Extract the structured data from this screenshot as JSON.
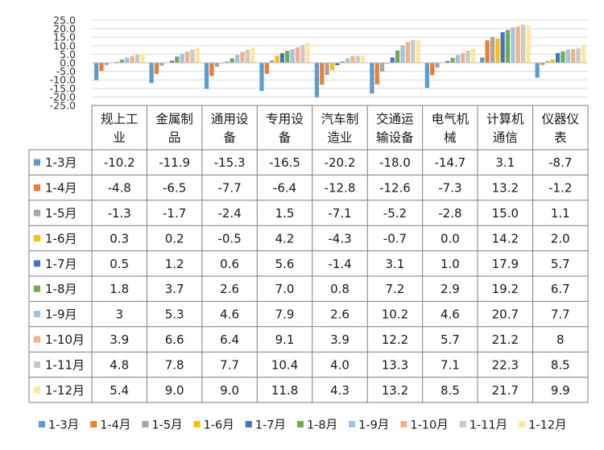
{
  "chart_data": {
    "type": "bar",
    "categories": [
      "规上工业",
      "金属制品",
      "通用设备",
      "专用设备",
      "汽车制造业",
      "交通运输设备",
      "电气机械",
      "计算机通信",
      "仪器仪表"
    ],
    "category_lines": [
      [
        "规上工",
        "业"
      ],
      [
        "金属制",
        "品"
      ],
      [
        "通用设",
        "备"
      ],
      [
        "专用设",
        "备"
      ],
      [
        "汽车制",
        "造业"
      ],
      [
        "交通运",
        "输设备"
      ],
      [
        "电气机",
        "械"
      ],
      [
        "计算机",
        "通信"
      ],
      [
        "仪器仪",
        "表"
      ]
    ],
    "ylim": [
      -25,
      25
    ],
    "yticks": [
      "25.0",
      "20.0",
      "15.0",
      "10.0",
      "5.0",
      "0.0",
      "-5.0",
      "-10.0",
      "-15.0",
      "-20.0",
      "-25.0"
    ],
    "grid": true,
    "legend_position": "bottom",
    "series": [
      {
        "name": "1-3月",
        "color": "#5B9BD5",
        "values": [
          -10.2,
          -11.9,
          -15.3,
          -16.5,
          -20.2,
          -18.0,
          -14.7,
          3.1,
          -8.7
        ],
        "labels": [
          "-10.2",
          "-11.9",
          "-15.3",
          "-16.5",
          "-20.2",
          "-18.0",
          "-14.7",
          "3.1",
          "-8.7"
        ]
      },
      {
        "name": "1-4月",
        "color": "#ED7D31",
        "values": [
          -4.8,
          -6.5,
          -7.7,
          -6.4,
          -12.8,
          -12.6,
          -7.3,
          13.2,
          -1.2
        ],
        "labels": [
          "-4.8",
          "-6.5",
          "-7.7",
          "-6.4",
          "-12.8",
          "-12.6",
          "-7.3",
          "13.2",
          "-1.2"
        ]
      },
      {
        "name": "1-5月",
        "color": "#A5A5A5",
        "values": [
          -1.3,
          -1.7,
          -2.4,
          1.5,
          -7.1,
          -5.2,
          -2.8,
          15.0,
          1.1
        ],
        "labels": [
          "-1.3",
          "-1.7",
          "-2.4",
          "1.5",
          "-7.1",
          "-5.2",
          "-2.8",
          "15.0",
          "1.1"
        ]
      },
      {
        "name": "1-6月",
        "color": "#FFC000",
        "values": [
          0.3,
          0.2,
          -0.5,
          4.2,
          -4.3,
          -0.7,
          0.0,
          14.2,
          2.0
        ],
        "labels": [
          "0.3",
          "0.2",
          "-0.5",
          "4.2",
          "-4.3",
          "-0.7",
          "0.0",
          "14.2",
          "2.0"
        ]
      },
      {
        "name": "1-7月",
        "color": "#4472C4",
        "values": [
          0.5,
          1.2,
          0.6,
          5.6,
          -1.4,
          3.1,
          1.0,
          17.9,
          5.7
        ],
        "labels": [
          "0.5",
          "1.2",
          "0.6",
          "5.6",
          "-1.4",
          "3.1",
          "1.0",
          "17.9",
          "5.7"
        ]
      },
      {
        "name": "1-8月",
        "color": "#70AD47",
        "values": [
          1.8,
          3.7,
          2.6,
          7.0,
          0.8,
          7.2,
          2.9,
          19.2,
          6.7
        ],
        "labels": [
          "1.8",
          "3.7",
          "2.6",
          "7.0",
          "0.8",
          "7.2",
          "2.9",
          "19.2",
          "6.7"
        ]
      },
      {
        "name": "1-9月",
        "color": "#9DC3E6",
        "values": [
          3,
          5.3,
          4.6,
          7.9,
          2.6,
          10.2,
          4.6,
          20.7,
          7.7
        ],
        "labels": [
          "3",
          "5.3",
          "4.6",
          "7.9",
          "2.6",
          "10.2",
          "4.6",
          "20.7",
          "7.7"
        ]
      },
      {
        "name": "1-10月",
        "color": "#F4B183",
        "values": [
          3.9,
          6.6,
          6.4,
          9.1,
          3.9,
          12.2,
          5.7,
          21.2,
          8
        ],
        "labels": [
          "3.9",
          "6.6",
          "6.4",
          "9.1",
          "3.9",
          "12.2",
          "5.7",
          "21.2",
          "8"
        ]
      },
      {
        "name": "1-11月",
        "color": "#C9C9C9",
        "values": [
          4.8,
          7.8,
          7.7,
          10.4,
          4.0,
          13.3,
          7.1,
          22.3,
          8.5
        ],
        "labels": [
          "4.8",
          "7.8",
          "7.7",
          "10.4",
          "4.0",
          "13.3",
          "7.1",
          "22.3",
          "8.5"
        ]
      },
      {
        "name": "1-12月",
        "color": "#FFE699",
        "values": [
          5.4,
          9.0,
          9.0,
          11.8,
          4.3,
          13.2,
          8.5,
          21.7,
          9.9
        ],
        "labels": [
          "5.4",
          "9.0",
          "9.0",
          "11.8",
          "4.3",
          "13.2",
          "8.5",
          "21.7",
          "9.9"
        ]
      }
    ]
  }
}
